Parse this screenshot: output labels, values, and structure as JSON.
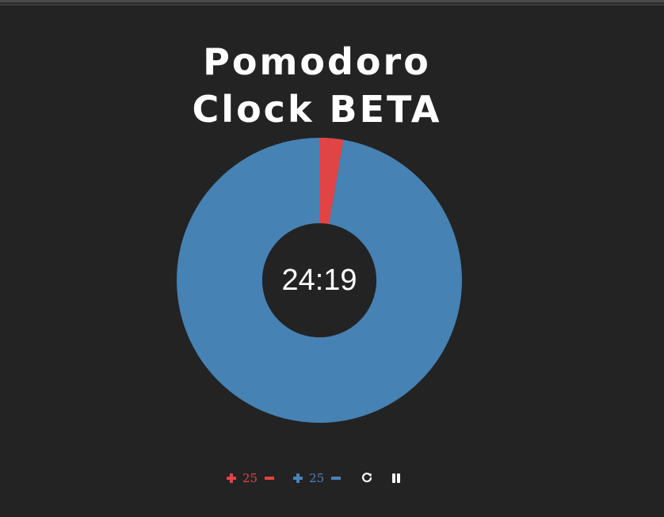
{
  "header": {
    "title_line1": "Pomodoro",
    "title_line2": "Clock BETA"
  },
  "clock": {
    "time_remaining": "24:19",
    "elapsed_fraction": 0.027,
    "colors": {
      "remaining": "#4682b4",
      "elapsed": "#e04444",
      "background": "#232323"
    }
  },
  "controls": {
    "work_minutes": "25",
    "break_minutes": "25",
    "work_color": "#e04444",
    "break_color": "#4a82b8",
    "icons": {
      "work_increase": "plus-icon",
      "work_decrease": "minus-icon",
      "break_increase": "plus-icon",
      "break_decrease": "minus-icon",
      "reset": "refresh-icon",
      "pause": "pause-icon"
    }
  }
}
